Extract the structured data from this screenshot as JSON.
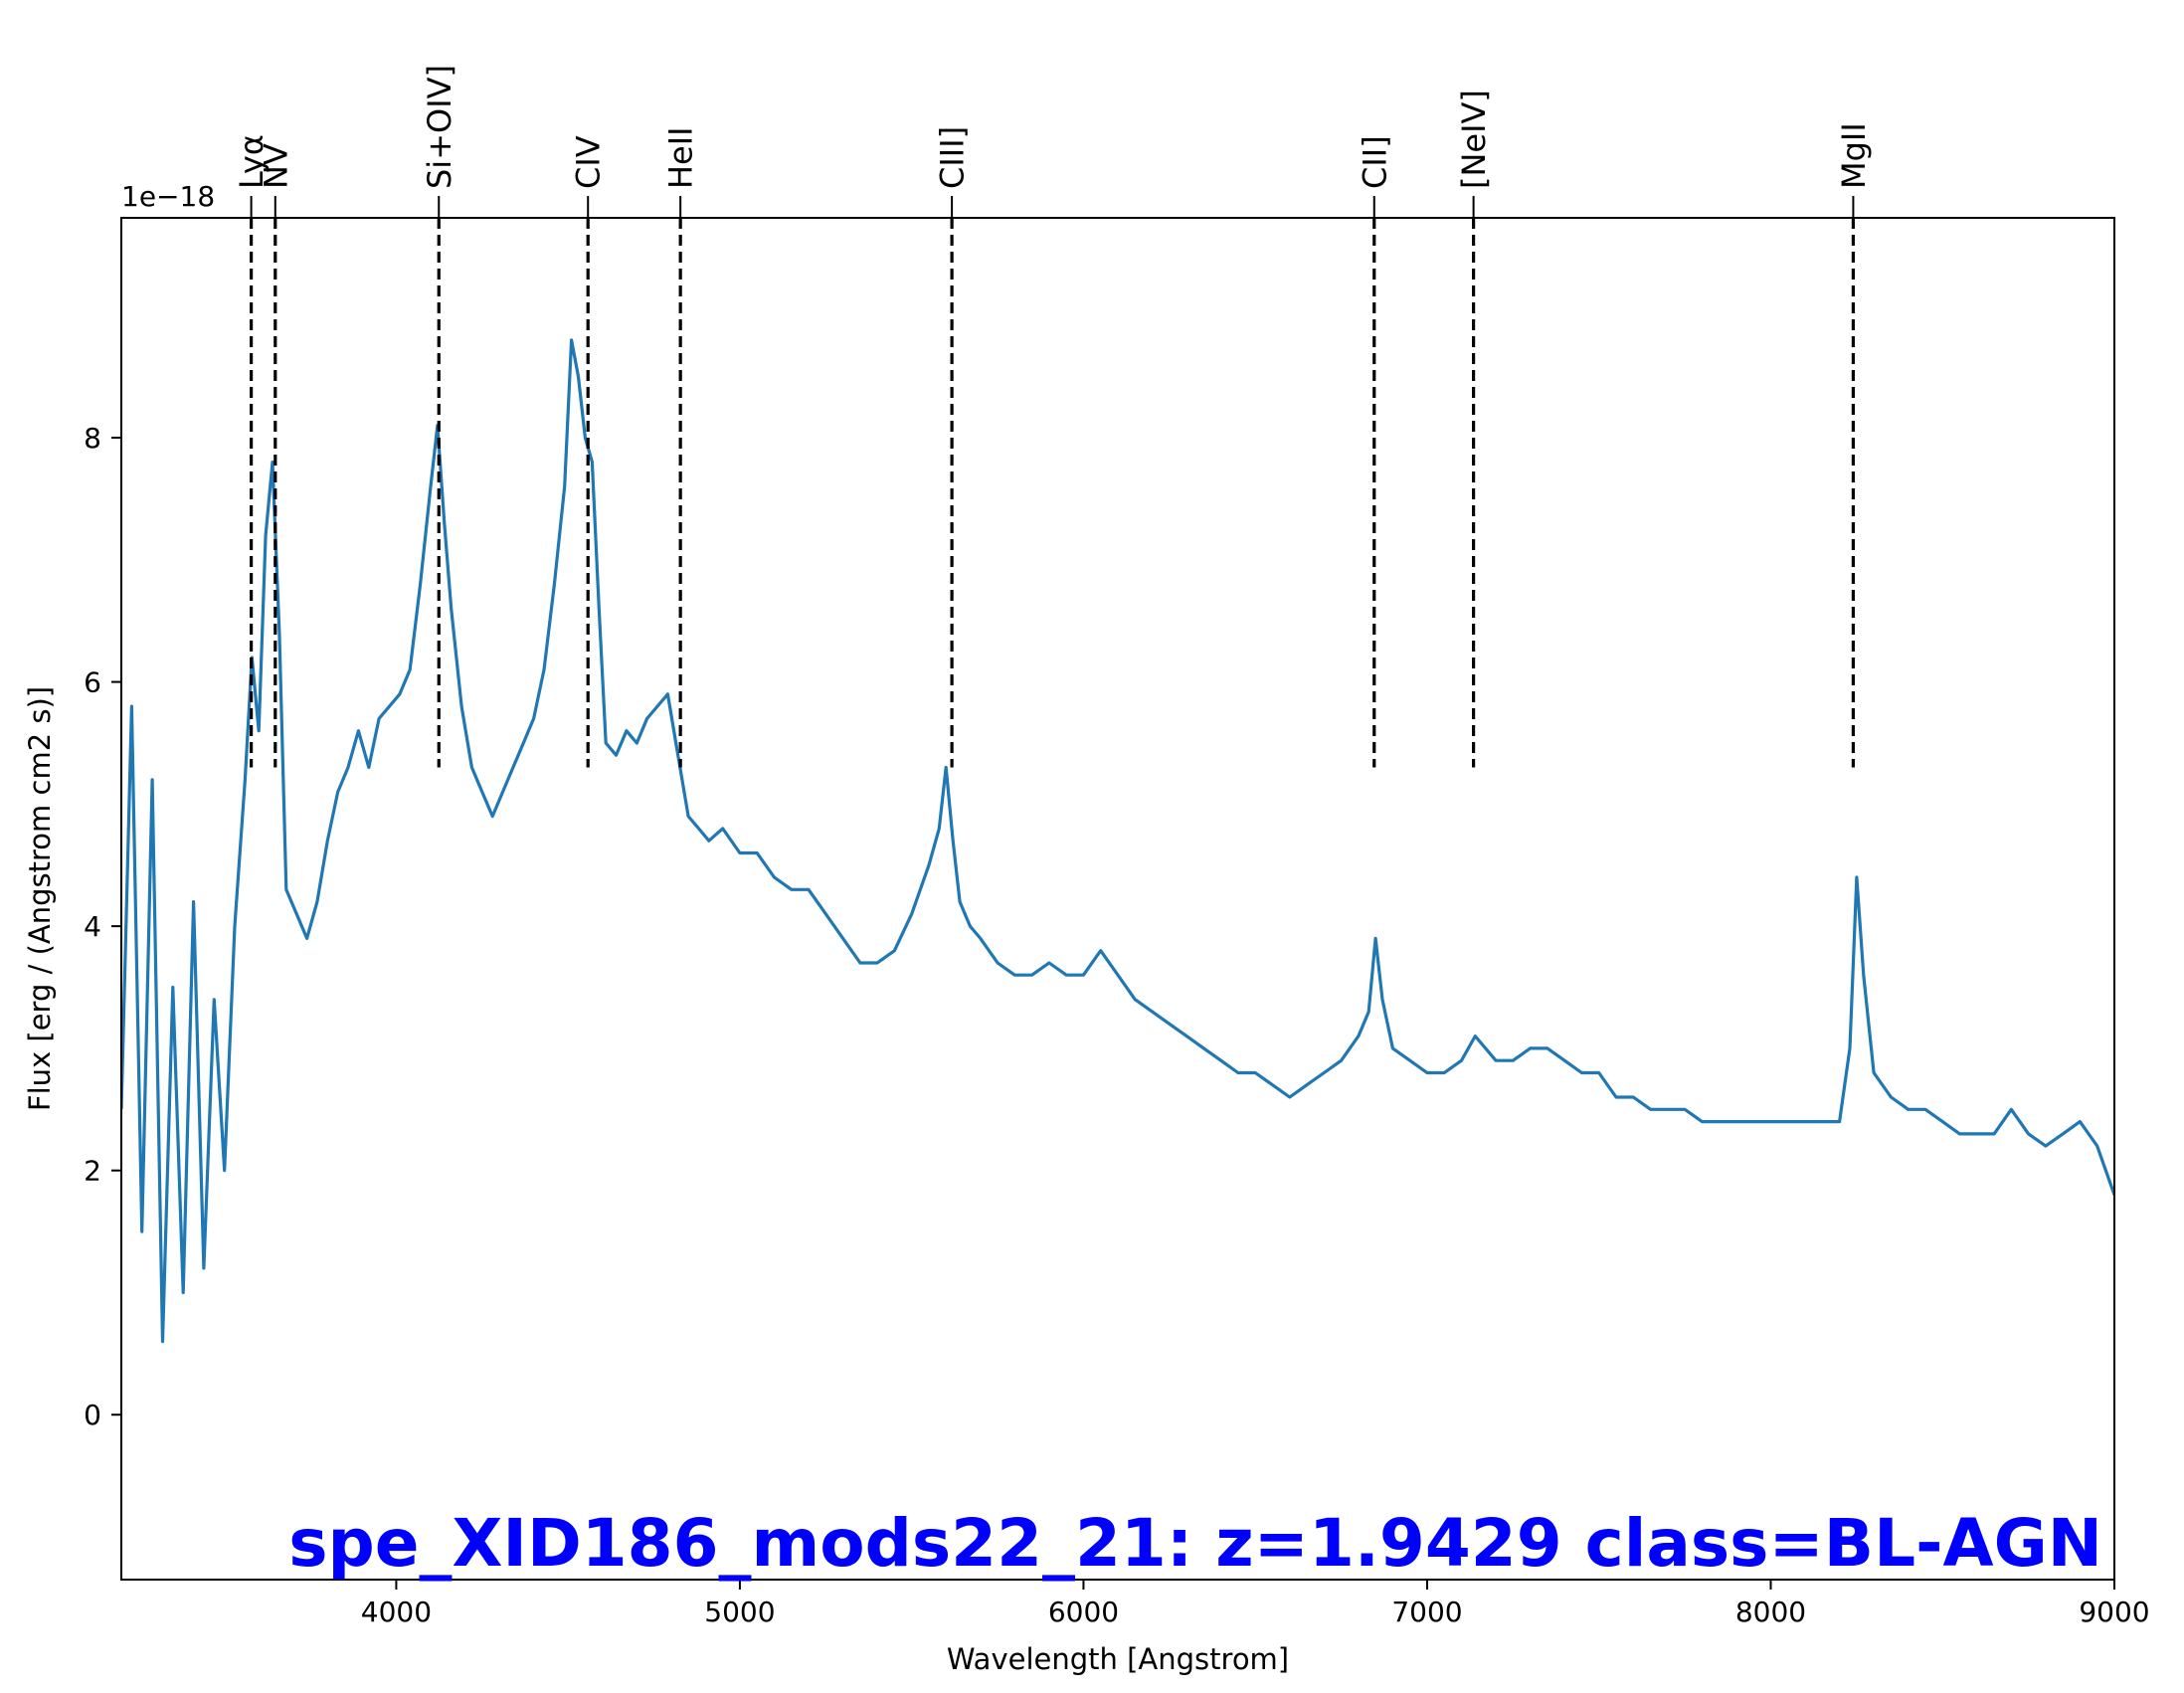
{
  "chart_data": {
    "type": "line",
    "title": "spe_XID186_mods22_21: z=1.9429 class=BL-AGN",
    "title_color": "#0000ff",
    "xlabel": "Wavelength [Angstrom]",
    "ylabel": "Flux [erg / (Angstrom cm2 s)]",
    "y_offset_label": "1e−18",
    "xlim": [
      3200,
      9000
    ],
    "ylim": [
      -1.35,
      9.8
    ],
    "xticks": [
      {
        "value": 4000,
        "label": "4000"
      },
      {
        "value": 5000,
        "label": "5000"
      },
      {
        "value": 6000,
        "label": "6000"
      },
      {
        "value": 7000,
        "label": "7000"
      },
      {
        "value": 8000,
        "label": "8000"
      },
      {
        "value": 9000,
        "label": "9000"
      }
    ],
    "yticks": [
      {
        "value": 0,
        "label": "0"
      },
      {
        "value": 2,
        "label": "2"
      },
      {
        "value": 4,
        "label": "4"
      },
      {
        "value": 6,
        "label": "6"
      },
      {
        "value": 8,
        "label": "8"
      }
    ],
    "grid": false,
    "series": [
      {
        "color": "#1f77b4",
        "x": [
          3200,
          3230,
          3260,
          3290,
          3320,
          3350,
          3380,
          3410,
          3440,
          3470,
          3500,
          3530,
          3560,
          3580,
          3600,
          3620,
          3640,
          3660,
          3680,
          3710,
          3740,
          3770,
          3800,
          3830,
          3860,
          3890,
          3920,
          3950,
          3980,
          4010,
          4040,
          4070,
          4100,
          4120,
          4140,
          4160,
          4190,
          4220,
          4250,
          4280,
          4310,
          4340,
          4370,
          4400,
          4430,
          4460,
          4490,
          4510,
          4530,
          4550,
          4570,
          4590,
          4610,
          4640,
          4670,
          4700,
          4730,
          4760,
          4790,
          4820,
          4850,
          4880,
          4910,
          4950,
          5000,
          5050,
          5100,
          5150,
          5200,
          5250,
          5300,
          5350,
          5400,
          5450,
          5500,
          5550,
          5580,
          5600,
          5620,
          5640,
          5670,
          5700,
          5750,
          5800,
          5850,
          5900,
          5950,
          6000,
          6050,
          6100,
          6150,
          6200,
          6250,
          6300,
          6350,
          6400,
          6450,
          6500,
          6550,
          6600,
          6650,
          6700,
          6750,
          6800,
          6830,
          6850,
          6870,
          6900,
          6950,
          7000,
          7050,
          7100,
          7140,
          7200,
          7250,
          7300,
          7350,
          7400,
          7450,
          7500,
          7550,
          7600,
          7650,
          7700,
          7750,
          7800,
          7850,
          7900,
          7950,
          8000,
          8050,
          8100,
          8150,
          8200,
          8230,
          8250,
          8270,
          8300,
          8350,
          8400,
          8450,
          8500,
          8550,
          8600,
          8650,
          8700,
          8750,
          8800,
          8850,
          8900,
          8950,
          9000
        ],
        "y": [
          2.5,
          5.8,
          1.5,
          5.2,
          0.6,
          3.5,
          1.0,
          4.2,
          1.2,
          3.4,
          2.0,
          4.0,
          5.2,
          6.2,
          5.6,
          7.2,
          7.8,
          6.4,
          4.3,
          4.1,
          3.9,
          4.2,
          4.7,
          5.1,
          5.3,
          5.6,
          5.3,
          5.7,
          5.8,
          5.9,
          6.1,
          6.8,
          7.6,
          8.1,
          7.3,
          6.6,
          5.8,
          5.3,
          5.1,
          4.9,
          5.1,
          5.3,
          5.5,
          5.7,
          6.1,
          6.8,
          7.6,
          8.8,
          8.5,
          8.0,
          7.8,
          6.6,
          5.5,
          5.4,
          5.6,
          5.5,
          5.7,
          5.8,
          5.9,
          5.4,
          4.9,
          4.8,
          4.7,
          4.8,
          4.6,
          4.6,
          4.4,
          4.3,
          4.3,
          4.1,
          3.9,
          3.7,
          3.7,
          3.8,
          4.1,
          4.5,
          4.8,
          5.3,
          4.7,
          4.2,
          4.0,
          3.9,
          3.7,
          3.6,
          3.6,
          3.7,
          3.6,
          3.6,
          3.8,
          3.6,
          3.4,
          3.3,
          3.2,
          3.1,
          3.0,
          2.9,
          2.8,
          2.8,
          2.7,
          2.6,
          2.7,
          2.8,
          2.9,
          3.1,
          3.3,
          3.9,
          3.4,
          3.0,
          2.9,
          2.8,
          2.8,
          2.9,
          3.1,
          2.9,
          2.9,
          3.0,
          3.0,
          2.9,
          2.8,
          2.8,
          2.6,
          2.6,
          2.5,
          2.5,
          2.5,
          2.4,
          2.4,
          2.4,
          2.4,
          2.4,
          2.4,
          2.4,
          2.4,
          2.4,
          3.0,
          4.4,
          3.6,
          2.8,
          2.6,
          2.5,
          2.5,
          2.4,
          2.3,
          2.3,
          2.3,
          2.5,
          2.3,
          2.2,
          2.3,
          2.4,
          2.2,
          1.8
        ]
      }
    ],
    "emission_lines": [
      {
        "name": "Lyα",
        "wavelength": 3578
      },
      {
        "name": "NV",
        "wavelength": 3648
      },
      {
        "name": "Si+OIV]",
        "wavelength": 4124
      },
      {
        "name": "CIV",
        "wavelength": 4558
      },
      {
        "name": "HeII",
        "wavelength": 4827
      },
      {
        "name": "CIII]",
        "wavelength": 5617
      },
      {
        "name": "CII]",
        "wavelength": 6846
      },
      {
        "name": "[NeIV]",
        "wavelength": 7135
      },
      {
        "name": "MgII",
        "wavelength": 8240
      }
    ]
  }
}
